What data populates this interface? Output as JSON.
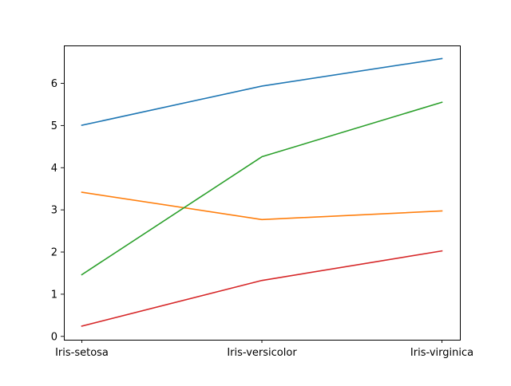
{
  "chart_data": {
    "type": "line",
    "title": "",
    "xlabel": "",
    "ylabel": "",
    "categories": [
      "Iris-setosa",
      "Iris-versicolor",
      "Iris-virginica"
    ],
    "ylim": [
      -0.08,
      6.88
    ],
    "yticks": [
      0,
      1,
      2,
      3,
      4,
      5,
      6
    ],
    "grid": false,
    "legend": "none",
    "series": [
      {
        "values": [
          5.006,
          5.936,
          6.588
        ],
        "color": "#1f77b4"
      },
      {
        "values": [
          3.418,
          2.77,
          2.974
        ],
        "color": "#ff7f0e"
      },
      {
        "values": [
          1.464,
          4.26,
          5.552
        ],
        "color": "#2ca02c"
      },
      {
        "values": [
          0.244,
          1.326,
          2.026
        ],
        "color": "#d62728"
      }
    ]
  }
}
